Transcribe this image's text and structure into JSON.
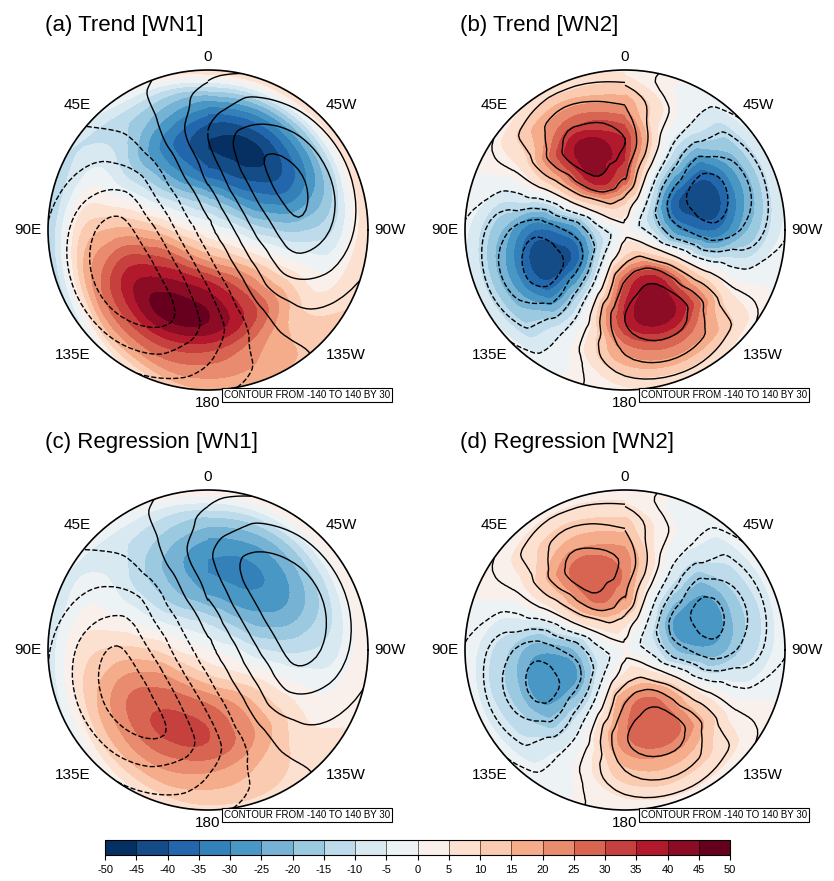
{
  "chart_data": [
    {
      "type": "polar_contour_map",
      "title": "(a) Trend [WN1]",
      "note": "CONTOUR FROM -140 TO 140 BY 30",
      "lat_range": [
        20,
        90
      ],
      "lats": [
        80,
        65,
        50,
        35,
        20
      ],
      "lons": [
        0,
        30,
        60,
        90,
        120,
        150,
        180,
        210,
        240,
        270,
        300,
        330
      ],
      "lon_labels": [
        0,
        {
          "value": -45,
          "label": "45W"
        },
        {
          "value": -90,
          "label": "90W"
        },
        {
          "value": -135,
          "label": "135W"
        },
        180,
        {
          "value": 135,
          "label": "135E"
        },
        {
          "value": 90,
          "label": "90E"
        },
        {
          "value": 45,
          "label": "45E"
        }
      ],
      "shading": {
        "pole": 0,
        "values": [
          [
            -14,
            -10,
            -3,
            5,
            12,
            15,
            14,
            10,
            3,
            -5,
            -12,
            -15
          ],
          [
            -38,
            -26,
            -7,
            14,
            31,
            39,
            38,
            26,
            7,
            -14,
            -31,
            -39
          ],
          [
            -45,
            -31,
            -8,
            16,
            37,
            47,
            45,
            31,
            8,
            -16,
            -37,
            -47
          ],
          [
            -28,
            -19,
            -5,
            10,
            23,
            29,
            28,
            19,
            5,
            -10,
            -23,
            -29
          ],
          [
            10,
            0,
            -10,
            -15,
            -10,
            5,
            15,
            15,
            10,
            10,
            10,
            10
          ]
        ]
      },
      "contours": {
        "pole": 0,
        "levels": [
          -140,
          -110,
          -80,
          -50,
          -20,
          10,
          40,
          70,
          100,
          130
        ],
        "values": [
          [
            20,
            0,
            -20,
            -35,
            -40,
            -35,
            -20,
            0,
            20,
            35,
            40,
            35
          ],
          [
            50,
            0,
            -50,
            -87,
            -100,
            -87,
            -50,
            0,
            50,
            87,
            100,
            87
          ],
          [
            70,
            0,
            -70,
            -122,
            -140,
            -122,
            -70,
            0,
            70,
            122,
            140,
            122
          ],
          [
            55,
            0,
            -55,
            -96,
            -110,
            -96,
            -55,
            0,
            55,
            96,
            110,
            96
          ],
          [
            30,
            0,
            -30,
            -52,
            -60,
            -52,
            -30,
            0,
            30,
            52,
            60,
            52
          ]
        ]
      }
    },
    {
      "type": "polar_contour_map",
      "title": "(b) Trend [WN2]",
      "note": "CONTOUR FROM -140 TO 140 BY 30",
      "lat_range": [
        20,
        90
      ],
      "lats": [
        80,
        65,
        50,
        35,
        20
      ],
      "lons": [
        0,
        30,
        60,
        90,
        120,
        150,
        180,
        210,
        240,
        270,
        300,
        330
      ],
      "lon_labels": [
        0,
        {
          "value": -45,
          "label": "45W"
        },
        {
          "value": -90,
          "label": "90W"
        },
        {
          "value": -135,
          "label": "135W"
        },
        180,
        {
          "value": 135,
          "label": "135E"
        },
        {
          "value": 90,
          "label": "90E"
        },
        {
          "value": 45,
          "label": "45E"
        }
      ],
      "shading": {
        "pole": 0,
        "values": [
          [
            8,
            9,
            2,
            -8,
            -9,
            -2,
            8,
            9,
            2,
            -8,
            -9,
            -2
          ],
          [
            31,
            38,
            7,
            -31,
            -38,
            -7,
            31,
            38,
            7,
            -31,
            -38,
            -7
          ],
          [
            35,
            42,
            8,
            -35,
            -42,
            -8,
            35,
            42,
            8,
            -35,
            -42,
            -8
          ],
          [
            19,
            24,
            4,
            -19,
            -24,
            -4,
            19,
            24,
            4,
            -19,
            -24,
            -4
          ],
          [
            4,
            5,
            1,
            -4,
            -5,
            -1,
            4,
            5,
            1,
            -4,
            -5,
            -1
          ]
        ]
      },
      "contours": {
        "pole": 0,
        "levels": [
          -140,
          -110,
          -80,
          -50,
          -20,
          10,
          40,
          70,
          100,
          130
        ],
        "values": [
          [
            23,
            28,
            5,
            -23,
            -28,
            -5,
            23,
            28,
            5,
            -23,
            -28,
            -5
          ],
          [
            77,
            94,
            17,
            -77,
            -94,
            -17,
            77,
            94,
            17,
            -77,
            -94,
            -17
          ],
          [
            100,
            122,
            22,
            -100,
            -122,
            -22,
            100,
            122,
            22,
            -100,
            -122,
            -22
          ],
          [
            69,
            85,
            15,
            -69,
            -85,
            -15,
            69,
            85,
            15,
            -69,
            -85,
            -15
          ],
          [
            23,
            28,
            5,
            -23,
            -28,
            -5,
            23,
            28,
            5,
            -23,
            -28,
            -5
          ]
        ]
      }
    },
    {
      "type": "polar_contour_map",
      "title": "(c) Regression [WN1]",
      "note": "CONTOUR FROM -140 TO 140 BY 30",
      "lat_range": [
        20,
        90
      ],
      "lats": [
        80,
        65,
        50,
        35,
        20
      ],
      "lons": [
        0,
        30,
        60,
        90,
        120,
        150,
        180,
        210,
        240,
        270,
        300,
        330
      ],
      "lon_labels": [
        0,
        {
          "value": -45,
          "label": "45W"
        },
        {
          "value": -90,
          "label": "90W"
        },
        {
          "value": -135,
          "label": "135W"
        },
        180,
        {
          "value": 135,
          "label": "135E"
        },
        {
          "value": 90,
          "label": "90E"
        },
        {
          "value": 45,
          "label": "45E"
        }
      ],
      "shading": {
        "pole": 0,
        "values": [
          [
            -9,
            -6,
            -2,
            3,
            8,
            10,
            9,
            6,
            2,
            -3,
            -8,
            -10
          ],
          [
            -26,
            -18,
            -5,
            10,
            22,
            27,
            26,
            18,
            5,
            -10,
            -22,
            -27
          ],
          [
            -30,
            -20,
            -5,
            11,
            25,
            31,
            30,
            20,
            5,
            -11,
            -25,
            -31
          ],
          [
            -19,
            -13,
            -3,
            7,
            15,
            20,
            19,
            13,
            3,
            -7,
            -15,
            -20
          ],
          [
            5,
            0,
            -5,
            -8,
            -5,
            3,
            8,
            8,
            5,
            5,
            5,
            5
          ]
        ]
      },
      "contours": {
        "pole": 0,
        "levels": [
          -140,
          -110,
          -80,
          -50,
          -20,
          10,
          40,
          70,
          100,
          130
        ],
        "values": [
          [
            18,
            0,
            -18,
            -30,
            -35,
            -30,
            -18,
            0,
            18,
            30,
            35,
            30
          ],
          [
            45,
            0,
            -45,
            -78,
            -90,
            -78,
            -45,
            0,
            45,
            78,
            90,
            78
          ],
          [
            65,
            0,
            -65,
            -113,
            -130,
            -113,
            -65,
            0,
            65,
            113,
            130,
            113
          ],
          [
            50,
            0,
            -50,
            -87,
            -100,
            -87,
            -50,
            0,
            50,
            87,
            100,
            87
          ],
          [
            28,
            0,
            -28,
            -48,
            -55,
            -48,
            -28,
            0,
            28,
            48,
            55,
            48
          ]
        ]
      }
    },
    {
      "type": "polar_contour_map",
      "title": "(d) Regression [WN2]",
      "note": "CONTOUR FROM -140 TO 140 BY 30",
      "lat_range": [
        20,
        90
      ],
      "lats": [
        80,
        65,
        50,
        35,
        20
      ],
      "lons": [
        0,
        30,
        60,
        90,
        120,
        150,
        180,
        210,
        240,
        270,
        300,
        330
      ],
      "lon_labels": [
        0,
        {
          "value": -45,
          "label": "45W"
        },
        {
          "value": -90,
          "label": "90W"
        },
        {
          "value": -135,
          "label": "135W"
        },
        180,
        {
          "value": 135,
          "label": "135E"
        },
        {
          "value": 90,
          "label": "90E"
        },
        {
          "value": 45,
          "label": "45E"
        }
      ],
      "shading": {
        "pole": 0,
        "values": [
          [
            5,
            6,
            1,
            -5,
            -6,
            -1,
            5,
            6,
            1,
            -5,
            -6,
            -1
          ],
          [
            22,
            26,
            5,
            -22,
            -26,
            -5,
            22,
            26,
            5,
            -22,
            -26,
            -5
          ],
          [
            23,
            28,
            5,
            -23,
            -28,
            -5,
            23,
            28,
            5,
            -23,
            -28,
            -5
          ],
          [
            12,
            14,
            3,
            -12,
            -14,
            -3,
            12,
            14,
            3,
            -12,
            -14,
            -3
          ],
          [
            2,
            3,
            1,
            -2,
            -3,
            -1,
            2,
            3,
            1,
            -2,
            -3,
            -1
          ]
        ]
      },
      "contours": {
        "pole": 0,
        "levels": [
          -140,
          -110,
          -80,
          -50,
          -20,
          10,
          40,
          70,
          100,
          130
        ],
        "values": [
          [
            22,
            26,
            5,
            -22,
            -26,
            -5,
            22,
            26,
            5,
            -22,
            -26,
            -5
          ],
          [
            74,
            90,
            16,
            -74,
            -90,
            -16,
            74,
            90,
            16,
            -74,
            -90,
            -16
          ],
          [
            96,
            117,
            21,
            -96,
            -117,
            -21,
            96,
            117,
            21,
            -96,
            -117,
            -21
          ],
          [
            65,
            80,
            14,
            -65,
            -80,
            -14,
            65,
            80,
            14,
            -65,
            -80,
            -14
          ],
          [
            22,
            26,
            5,
            -22,
            -26,
            -5,
            22,
            26,
            5,
            -22,
            -26,
            -5
          ]
        ]
      }
    }
  ],
  "colorbar": {
    "range": [
      -50,
      50
    ],
    "ticks": [
      -50,
      -45,
      -40,
      -35,
      -30,
      -25,
      -20,
      -15,
      -10,
      -5,
      0,
      5,
      10,
      15,
      20,
      25,
      30,
      35,
      40,
      45,
      50
    ]
  }
}
